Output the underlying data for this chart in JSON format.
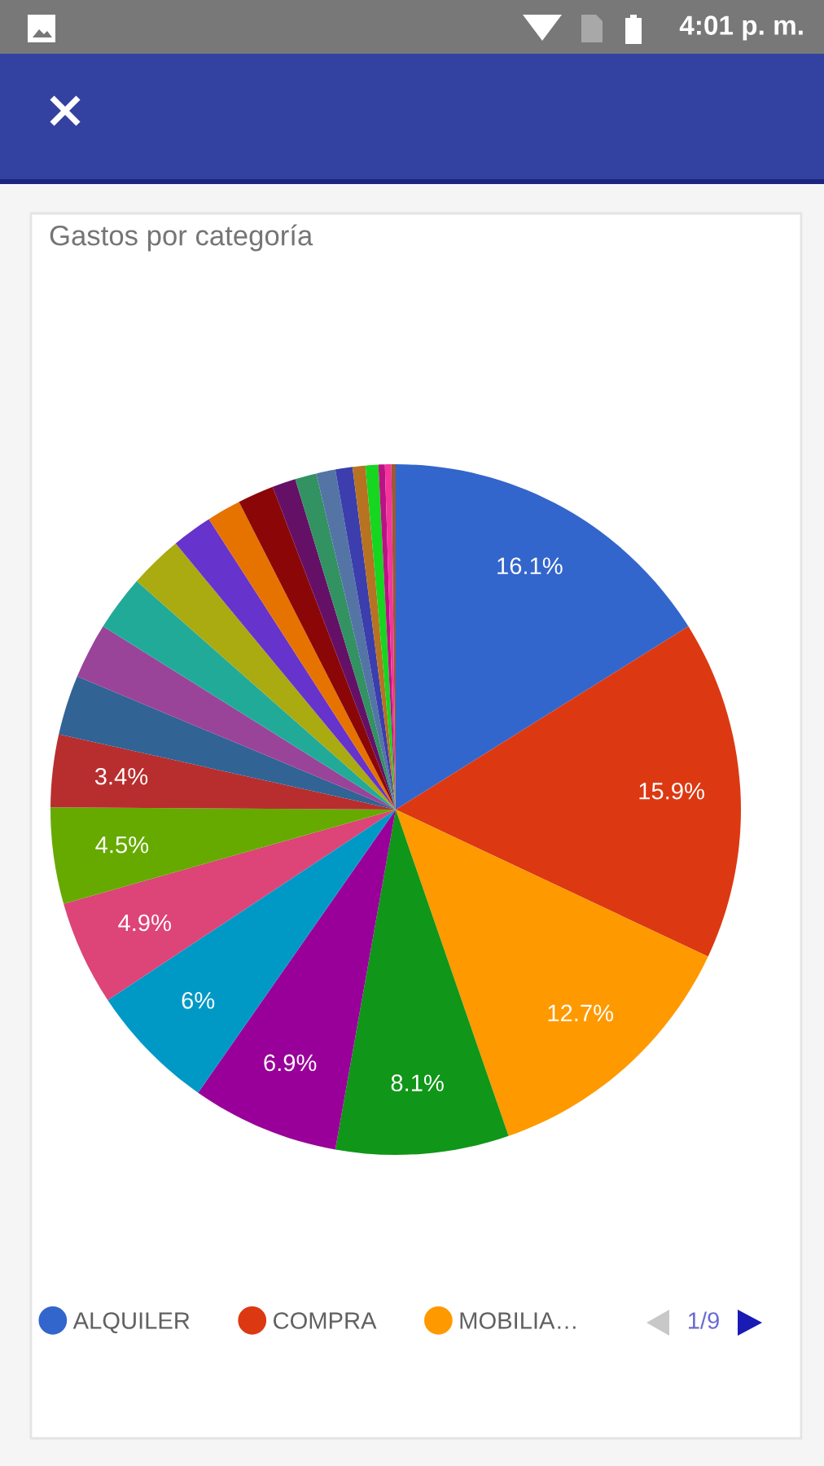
{
  "chart_data": {
    "type": "pie",
    "title": "Gastos por categoría",
    "categories": [
      "ALQUILER",
      "COMPRA",
      "MOBILIA…",
      null,
      null,
      null,
      null,
      null,
      null,
      null,
      null,
      null,
      null,
      null,
      null,
      null,
      null,
      null,
      null,
      null,
      null,
      null,
      null,
      null,
      null
    ],
    "values": [
      16.1,
      15.9,
      12.7,
      8.1,
      6.9,
      6,
      4.9,
      4.5,
      3.4,
      2.8,
      2.6,
      2.6,
      2.5,
      1.9,
      1.6,
      1.7,
      1.1,
      1.0,
      0.9,
      0.8,
      0.6,
      0.6,
      0.3,
      0.3,
      0.2
    ],
    "colors": [
      "#3366cc",
      "#dc3912",
      "#ff9900",
      "#109618",
      "#990099",
      "#0099c6",
      "#dd4477",
      "#66aa00",
      "#b82e2e",
      "#316395",
      "#994499",
      "#22aa99",
      "#aaaa11",
      "#6633cc",
      "#e67300",
      "#8b0707",
      "#651067",
      "#329262",
      "#5574a6",
      "#3b3eac",
      "#b77322",
      "#16d620",
      "#b91383",
      "#f4359e",
      "#9c5935"
    ],
    "value_labels": [
      "16.1%",
      "15.9%",
      "12.7%",
      "8.1%",
      "6.9%",
      "6%",
      "4.9%",
      "4.5%",
      "3.4%",
      null,
      null,
      null,
      null,
      null,
      null,
      null,
      null,
      null,
      null,
      null,
      null,
      null,
      null,
      null,
      null
    ],
    "legend": "bottom",
    "annotations": [
      "1/9",
      "4:01 p. m."
    ]
  }
}
